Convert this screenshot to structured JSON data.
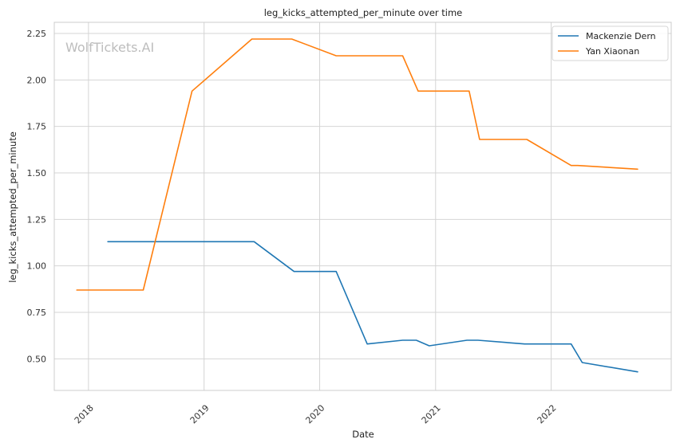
{
  "chart_data": {
    "type": "line",
    "title": "leg_kicks_attempted_per_minute over time",
    "xlabel": "Date",
    "ylabel": "leg_kicks_attempted_per_minute",
    "watermark": "WolfTickets.AI",
    "x_ticks": [
      "2018",
      "2019",
      "2020",
      "2021",
      "2022"
    ],
    "y_ticks": [
      "0.50",
      "0.75",
      "1.00",
      "1.25",
      "1.50",
      "1.75",
      "2.00",
      "2.25"
    ],
    "xlim": [
      "2017-09-15",
      "2023-01-15"
    ],
    "ylim": [
      0.33,
      2.31
    ],
    "grid": true,
    "legend_position": "top-right",
    "series": [
      {
        "name": "Mackenzie Dern",
        "color": "#1f77b4",
        "points": [
          [
            "2018-03-03",
            1.13
          ],
          [
            "2018-09-08",
            1.13
          ],
          [
            "2019-06-08",
            1.13
          ],
          [
            "2019-10-12",
            0.97
          ],
          [
            "2020-02-22",
            0.97
          ],
          [
            "2020-05-30",
            0.58
          ],
          [
            "2020-09-19",
            0.6
          ],
          [
            "2020-11-01",
            0.6
          ],
          [
            "2020-12-12",
            0.57
          ],
          [
            "2021-04-10",
            0.6
          ],
          [
            "2021-05-15",
            0.6
          ],
          [
            "2021-10-09",
            0.58
          ],
          [
            "2022-03-05",
            0.58
          ],
          [
            "2022-04-09",
            0.48
          ],
          [
            "2022-10-01",
            0.43
          ]
        ]
      },
      {
        "name": "Yan Xiaonan",
        "color": "#ff7f0e",
        "points": [
          [
            "2017-11-25",
            0.87
          ],
          [
            "2018-06-23",
            0.87
          ],
          [
            "2018-11-24",
            1.94
          ],
          [
            "2019-06-01",
            2.22
          ],
          [
            "2019-10-05",
            2.22
          ],
          [
            "2020-02-22",
            2.13
          ],
          [
            "2020-09-19",
            2.13
          ],
          [
            "2020-11-07",
            1.94
          ],
          [
            "2021-04-17",
            1.94
          ],
          [
            "2021-05-20",
            1.68
          ],
          [
            "2021-10-16",
            1.68
          ],
          [
            "2022-03-05",
            1.54
          ],
          [
            "2022-03-26",
            1.54
          ],
          [
            "2022-10-01",
            1.52
          ]
        ]
      }
    ]
  }
}
